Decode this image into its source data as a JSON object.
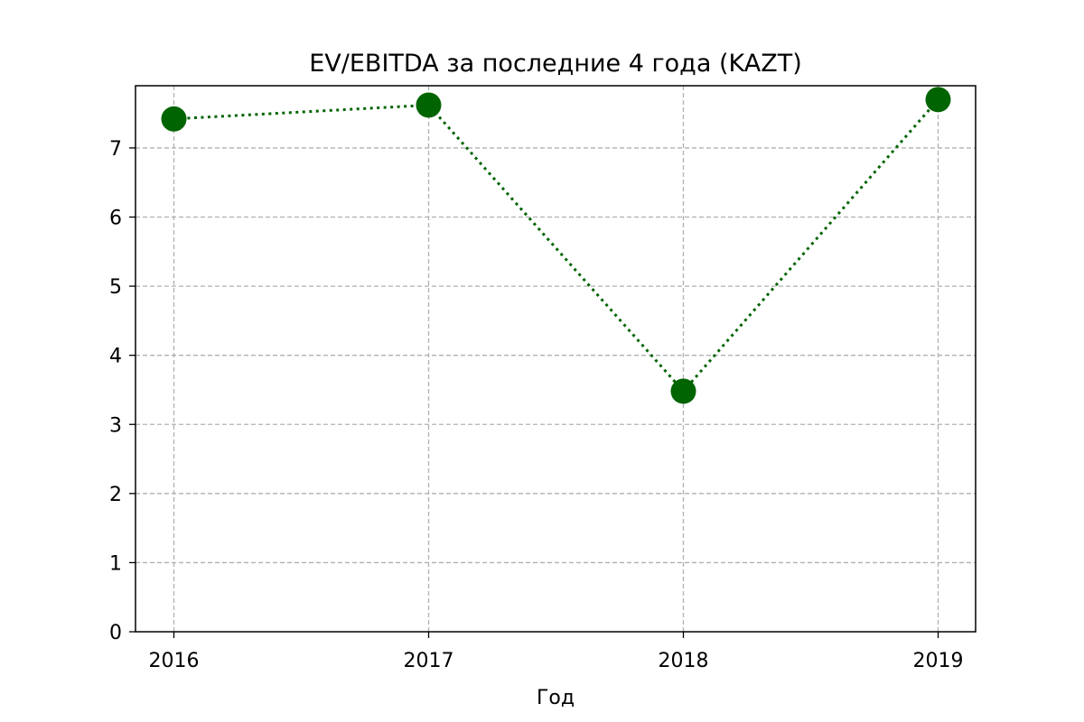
{
  "chart_data": {
    "type": "line",
    "title": "EV/EBITDA за последние 4 года (KAZT)",
    "xlabel": "Год",
    "ylabel": "",
    "categories": [
      "2016",
      "2017",
      "2018",
      "2019"
    ],
    "series": [
      {
        "values": [
          7.42,
          7.62,
          3.48,
          7.7
        ]
      }
    ],
    "ylim": [
      0,
      7.9
    ],
    "yticks": [
      "0",
      "1",
      "2",
      "3",
      "4",
      "5",
      "6",
      "7"
    ],
    "grid": true,
    "line_style": "dotted",
    "marker": "circle",
    "color": "#006400",
    "grid_color": "#b0b0b0"
  }
}
